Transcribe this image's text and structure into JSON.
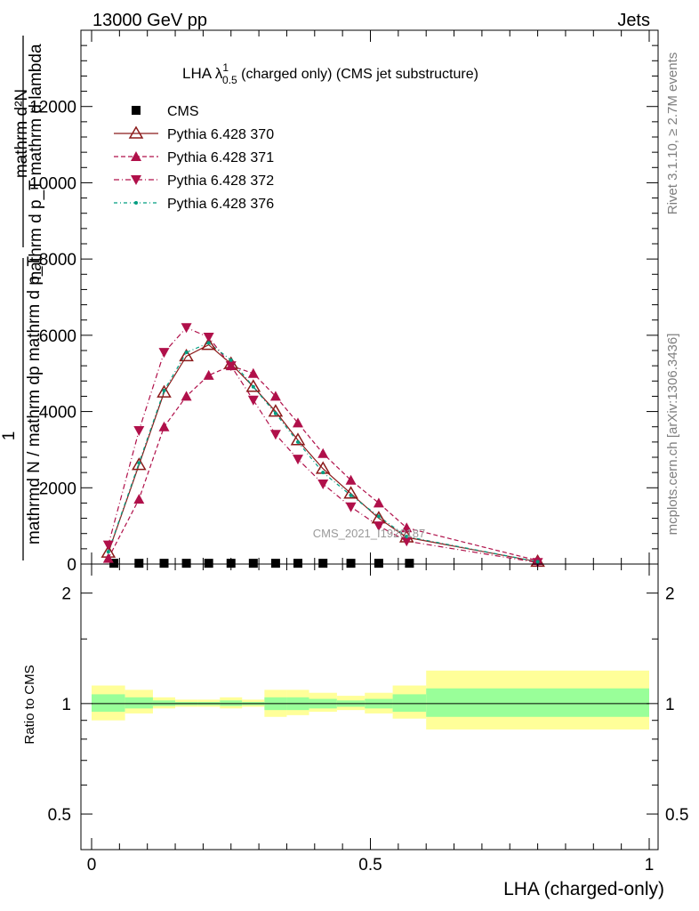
{
  "header": {
    "left": "13000 GeV pp",
    "right": "Jets"
  },
  "side": {
    "rivet": "Rivet 3.1.10, ≥ 2.7M events",
    "mcplots": "mcplots.cern.ch [arXiv:1306.3436]"
  },
  "watermark": "CMS_2021_I1920187",
  "colors": {
    "data": "#000000",
    "p370": "#8b1a1a",
    "p371": "#b0104a",
    "p372": "#b0104a",
    "p376": "#009d80",
    "band_inner": "#99ff99",
    "band_outer": "#ffff99"
  },
  "chart_data": [
    {
      "type": "line",
      "title_main": "LHA λ",
      "title_sup": "1",
      "title_sub": "0.5",
      "title_rest": " (charged only) (CMS jet substructure)",
      "ylabel_top": "mathrm d²N",
      "ylabel_bottom": "mathrm d p_T mathrm d lambda",
      "ylabel_one": "1",
      "ylabel_denom": "mathrmd N / mathrm dp mathrm d p_T",
      "xlim": [
        0,
        1
      ],
      "ylim": [
        0,
        14000
      ],
      "yticks": [
        0,
        2000,
        4000,
        6000,
        8000,
        10000,
        12000
      ],
      "ytick_labels": [
        "0",
        "2000",
        "4000",
        "6000",
        "8000",
        "10000",
        "12000"
      ],
      "series": [
        {
          "name": "CMS",
          "style": "data",
          "x": [
            0.04,
            0.085,
            0.13,
            0.17,
            0.21,
            0.25,
            0.29,
            0.33,
            0.37,
            0.415,
            0.465,
            0.515,
            0.57
          ],
          "values": [
            20,
            20,
            20,
            20,
            20,
            20,
            20,
            20,
            20,
            20,
            20,
            20,
            20
          ]
        },
        {
          "name": "Pythia 6.428 370",
          "style": "p370",
          "x": [
            0.03,
            0.085,
            0.13,
            0.17,
            0.21,
            0.25,
            0.29,
            0.33,
            0.37,
            0.415,
            0.465,
            0.515,
            0.565,
            0.8
          ],
          "values": [
            300,
            2600,
            4500,
            5450,
            5750,
            5250,
            4650,
            4000,
            3250,
            2500,
            1850,
            1200,
            700,
            60
          ]
        },
        {
          "name": "Pythia 6.428 371",
          "style": "p371",
          "x": [
            0.03,
            0.085,
            0.13,
            0.17,
            0.21,
            0.25,
            0.29,
            0.33,
            0.37,
            0.415,
            0.465,
            0.515,
            0.565,
            0.8
          ],
          "values": [
            150,
            1700,
            3600,
            4400,
            4950,
            5200,
            5000,
            4400,
            3700,
            2900,
            2200,
            1600,
            950,
            90
          ]
        },
        {
          "name": "Pythia 6.428 372",
          "style": "p372",
          "x": [
            0.03,
            0.085,
            0.13,
            0.17,
            0.21,
            0.25,
            0.29,
            0.33,
            0.37,
            0.415,
            0.465,
            0.515,
            0.565,
            0.8
          ],
          "values": [
            500,
            3500,
            5550,
            6200,
            5950,
            5200,
            4300,
            3400,
            2750,
            2100,
            1500,
            1000,
            600,
            40
          ]
        },
        {
          "name": "Pythia 6.428 376",
          "style": "p376",
          "x": [
            0.03,
            0.085,
            0.13,
            0.17,
            0.21,
            0.25,
            0.29,
            0.33,
            0.37,
            0.415,
            0.465,
            0.515,
            0.565,
            0.8
          ],
          "values": [
            320,
            2650,
            4550,
            5550,
            5800,
            5350,
            4650,
            3950,
            3200,
            2400,
            1800,
            1250,
            720,
            60
          ]
        }
      ]
    },
    {
      "type": "area",
      "ylabel": "Ratio to CMS",
      "xlabel": "LHA (charged-only)",
      "xlim": [
        0,
        1
      ],
      "xticks": [
        0,
        0.5,
        1
      ],
      "xtick_labels": [
        "0",
        "0.5",
        "1"
      ],
      "ylim": [
        0.4,
        2.4
      ],
      "log_y": true,
      "yticks": [
        0.5,
        1,
        2
      ],
      "ytick_labels": [
        "0.5",
        "1",
        "2"
      ],
      "reference": 1,
      "bins": [
        {
          "x0": 0.0,
          "x1": 0.06,
          "inner": [
            0.95,
            1.06
          ],
          "outer": [
            0.9,
            1.12
          ]
        },
        {
          "x0": 0.06,
          "x1": 0.11,
          "inner": [
            0.97,
            1.04
          ],
          "outer": [
            0.94,
            1.09
          ]
        },
        {
          "x0": 0.11,
          "x1": 0.15,
          "inner": [
            0.985,
            1.02
          ],
          "outer": [
            0.97,
            1.04
          ]
        },
        {
          "x0": 0.15,
          "x1": 0.19,
          "inner": [
            0.99,
            1.01
          ],
          "outer": [
            0.98,
            1.025
          ]
        },
        {
          "x0": 0.19,
          "x1": 0.23,
          "inner": [
            0.99,
            1.01
          ],
          "outer": [
            0.98,
            1.025
          ]
        },
        {
          "x0": 0.23,
          "x1": 0.27,
          "inner": [
            0.985,
            1.02
          ],
          "outer": [
            0.97,
            1.04
          ]
        },
        {
          "x0": 0.27,
          "x1": 0.31,
          "inner": [
            0.99,
            1.01
          ],
          "outer": [
            0.98,
            1.025
          ]
        },
        {
          "x0": 0.31,
          "x1": 0.35,
          "inner": [
            0.96,
            1.04
          ],
          "outer": [
            0.92,
            1.09
          ]
        },
        {
          "x0": 0.35,
          "x1": 0.39,
          "inner": [
            0.96,
            1.04
          ],
          "outer": [
            0.93,
            1.09
          ]
        },
        {
          "x0": 0.39,
          "x1": 0.44,
          "inner": [
            0.97,
            1.03
          ],
          "outer": [
            0.95,
            1.07
          ]
        },
        {
          "x0": 0.44,
          "x1": 0.49,
          "inner": [
            0.98,
            1.02
          ],
          "outer": [
            0.96,
            1.05
          ]
        },
        {
          "x0": 0.49,
          "x1": 0.54,
          "inner": [
            0.97,
            1.03
          ],
          "outer": [
            0.94,
            1.07
          ]
        },
        {
          "x0": 0.54,
          "x1": 0.6,
          "inner": [
            0.95,
            1.06
          ],
          "outer": [
            0.91,
            1.12
          ]
        },
        {
          "x0": 0.6,
          "x1": 1.0,
          "inner": [
            0.92,
            1.1
          ],
          "outer": [
            0.85,
            1.23
          ]
        }
      ]
    }
  ]
}
